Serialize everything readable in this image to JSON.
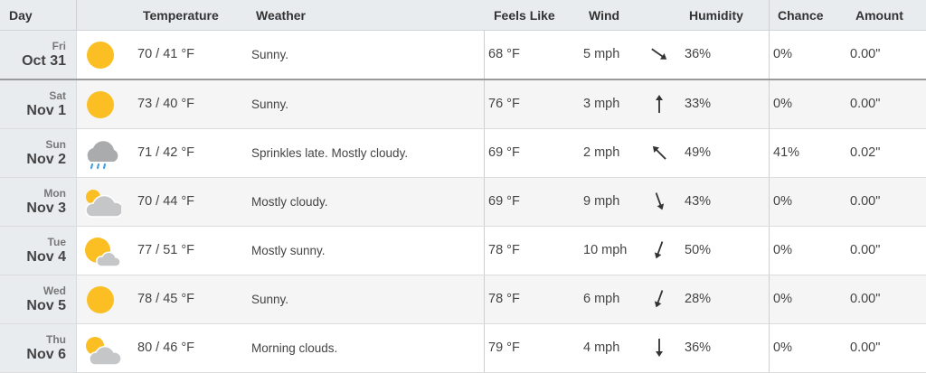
{
  "header": {
    "day": "Day",
    "temperature": "Temperature",
    "weather": "Weather",
    "feels_like": "Feels Like",
    "wind": "Wind",
    "humidity": "Humidity",
    "chance": "Chance",
    "amount": "Amount"
  },
  "colors": {
    "sun": "#fbbf24",
    "cloud": "#c4c6c8",
    "rain": "#4aa3df",
    "day_column": "#e9ecef"
  },
  "rows": [
    {
      "dow": "Fri",
      "date": "Oct 31",
      "icon": "sunny-icon",
      "temp": "70 / 41 °F",
      "weather": "Sunny.",
      "feels": "68 °F",
      "wind": "5 mph",
      "wind_dir_deg": 125,
      "humidity": "36%",
      "chance": "0%",
      "amount": "0.00\""
    },
    {
      "dow": "Sat",
      "date": "Nov 1",
      "icon": "sunny-icon",
      "temp": "73 / 40 °F",
      "weather": "Sunny.",
      "feels": "76 °F",
      "wind": "3 mph",
      "wind_dir_deg": 0,
      "humidity": "33%",
      "chance": "0%",
      "amount": "0.00\""
    },
    {
      "dow": "Sun",
      "date": "Nov 2",
      "icon": "rain-cloud-icon",
      "temp": "71 / 42 °F",
      "weather": "Sprinkles late. Mostly cloudy.",
      "feels": "69 °F",
      "wind": "2 mph",
      "wind_dir_deg": 315,
      "humidity": "49%",
      "chance": "41%",
      "amount": "0.02\""
    },
    {
      "dow": "Mon",
      "date": "Nov 3",
      "icon": "mostly-cloudy-icon",
      "temp": "70 / 44 °F",
      "weather": "Mostly cloudy.",
      "feels": "69 °F",
      "wind": "9 mph",
      "wind_dir_deg": 160,
      "humidity": "43%",
      "chance": "0%",
      "amount": "0.00\""
    },
    {
      "dow": "Tue",
      "date": "Nov 4",
      "icon": "mostly-sunny-icon",
      "temp": "77 / 51 °F",
      "weather": "Mostly sunny.",
      "feels": "78 °F",
      "wind": "10 mph",
      "wind_dir_deg": 200,
      "humidity": "50%",
      "chance": "0%",
      "amount": "0.00\""
    },
    {
      "dow": "Wed",
      "date": "Nov 5",
      "icon": "sunny-icon",
      "temp": "78 / 45 °F",
      "weather": "Sunny.",
      "feels": "78 °F",
      "wind": "6 mph",
      "wind_dir_deg": 200,
      "humidity": "28%",
      "chance": "0%",
      "amount": "0.00\""
    },
    {
      "dow": "Thu",
      "date": "Nov 6",
      "icon": "partly-cloudy-icon",
      "temp": "80 / 46 °F",
      "weather": "Morning clouds.",
      "feels": "79 °F",
      "wind": "4 mph",
      "wind_dir_deg": 180,
      "humidity": "36%",
      "chance": "0%",
      "amount": "0.00\""
    }
  ]
}
